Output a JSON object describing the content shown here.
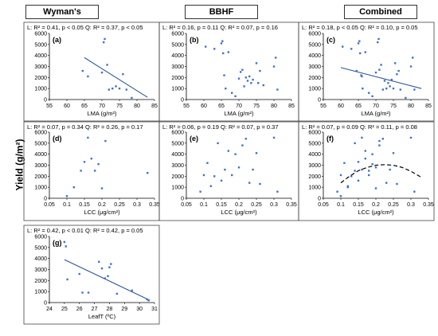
{
  "headers": [
    "Wyman's",
    "BBHF",
    "Combined"
  ],
  "ylabel": "Yield (g/m²)",
  "chart_data": [
    {
      "panel": "(a)",
      "type": "scatter",
      "xlabel": "LMA (g/m²)",
      "stats": "L: R² = 0.41, p < 0.05  Q: R² = 0.37, p < 0.05",
      "xlim": [
        55,
        85
      ],
      "xticks": [
        55,
        60,
        65,
        70,
        75,
        80,
        85
      ],
      "ylim": [
        0,
        6000
      ],
      "yticks": [
        0,
        1000,
        2000,
        3000,
        4000,
        5000,
        6000
      ],
      "x": [
        64.5,
        66,
        70,
        70.5,
        70.8,
        71.5,
        72,
        73,
        74,
        75,
        76,
        77,
        78.5
      ],
      "y": [
        2600,
        2100,
        2450,
        5200,
        5500,
        3150,
        900,
        1000,
        1200,
        1000,
        2300,
        900,
        150
      ],
      "trend": {
        "kind": "linear",
        "x": [
          65,
          83
        ],
        "y": [
          3800,
          200
        ]
      }
    },
    {
      "panel": "(b)",
      "type": "scatter",
      "xlabel": "LMA (g/m²)",
      "stats": "L: R² = 0.16, p = 0.11  Q: R² = 0.07, p = 0.16",
      "xlim": [
        55,
        85
      ],
      "xticks": [
        55,
        60,
        65,
        70,
        75,
        80,
        85
      ],
      "ylim": [
        0,
        6000
      ],
      "yticks": [
        0,
        1000,
        2000,
        3000,
        4000,
        5000,
        6000
      ],
      "x": [
        60.5,
        63,
        65,
        65.3,
        65.5,
        65.8,
        66.2,
        67,
        68,
        69,
        70,
        70.5,
        71,
        71.5,
        72,
        72.5,
        73,
        73.5,
        74,
        75,
        75.5,
        76,
        77,
        80,
        80.5,
        81
      ],
      "y": [
        4800,
        4600,
        5100,
        5300,
        4200,
        2200,
        1000,
        4300,
        600,
        300,
        1900,
        2500,
        2700,
        1200,
        2000,
        1700,
        2100,
        1500,
        1800,
        3300,
        1500,
        2600,
        1300,
        3000,
        3800,
        900
      ],
      "trend": null
    },
    {
      "panel": "(c)",
      "type": "scatter",
      "xlabel": "LMA (g/m²)",
      "stats": "L: R² = 0.18, p < 0.05  Q: R² = 0.10, p = 0.05",
      "xlim": [
        55,
        85
      ],
      "xticks": [
        55,
        60,
        65,
        70,
        75,
        80,
        85
      ],
      "ylim": [
        0,
        6000
      ],
      "yticks": [
        0,
        1000,
        2000,
        3000,
        4000,
        5000,
        6000
      ],
      "x": [
        60.5,
        63,
        64.5,
        65,
        65.3,
        65.5,
        65.8,
        66,
        66.2,
        67,
        68,
        69,
        70,
        70.5,
        70.8,
        71,
        71.5,
        72,
        72.5,
        73,
        73.5,
        74,
        74.5,
        75,
        75.5,
        76,
        76.5,
        77,
        78.5,
        80,
        80.5,
        81
      ],
      "y": [
        4800,
        4600,
        2600,
        5100,
        5300,
        4200,
        2200,
        2100,
        1000,
        4300,
        600,
        300,
        2450,
        5200,
        5500,
        2700,
        3150,
        900,
        1700,
        1000,
        1500,
        1200,
        1800,
        1000,
        3300,
        2300,
        2600,
        900,
        150,
        3000,
        3800,
        900
      ],
      "trend": {
        "kind": "linear",
        "x": [
          60,
          83
        ],
        "y": [
          2900,
          1000
        ]
      }
    },
    {
      "panel": "(d)",
      "type": "scatter",
      "xlabel": "LCC (μg/cm²)",
      "stats": "L: R² = 0.07, p = 0.34  Q: R² = 0.26, p = 0.17",
      "xlim": [
        0.05,
        0.35
      ],
      "xticks": [
        0.05,
        0.1,
        0.15,
        0.2,
        0.25,
        0.3,
        0.35
      ],
      "ylim": [
        0,
        6000
      ],
      "yticks": [
        0,
        1000,
        2000,
        3000,
        4000,
        5000,
        6000
      ],
      "x": [
        0.1,
        0.12,
        0.14,
        0.15,
        0.16,
        0.17,
        0.18,
        0.19,
        0.2,
        0.21,
        0.33
      ],
      "y": [
        200,
        1000,
        2500,
        3300,
        5500,
        3600,
        2500,
        3100,
        900,
        5200,
        2300
      ],
      "trend": null
    },
    {
      "panel": "(e)",
      "type": "scatter",
      "xlabel": "LCC (μg/cm²)",
      "stats": "L: R² = 0.06, p = 0.19  Q: R² = 0.07, p = 0.37",
      "xlim": [
        0.05,
        0.35
      ],
      "xticks": [
        0.05,
        0.1,
        0.15,
        0.2,
        0.25,
        0.3,
        0.35
      ],
      "ylim": [
        0,
        6000
      ],
      "yticks": [
        0,
        1000,
        2000,
        3000,
        4000,
        5000,
        6000
      ],
      "x": [
        0.09,
        0.1,
        0.11,
        0.12,
        0.13,
        0.14,
        0.15,
        0.16,
        0.17,
        0.18,
        0.19,
        0.2,
        0.21,
        0.22,
        0.23,
        0.24,
        0.25,
        0.26,
        0.3,
        0.31
      ],
      "y": [
        600,
        2100,
        3200,
        1100,
        2000,
        5000,
        1600,
        2600,
        4300,
        2100,
        4000,
        2800,
        4800,
        5400,
        1400,
        2600,
        4100,
        1300,
        5500,
        600
      ],
      "trend": null
    },
    {
      "panel": "(f)",
      "type": "scatter",
      "xlabel": "LCC (μg/cm²)",
      "stats": "L: R² = 0.07, p = 0.09  Q: R² = 0.11, p = 0.08",
      "xlim": [
        0.05,
        0.35
      ],
      "xticks": [
        0.05,
        0.1,
        0.15,
        0.2,
        0.25,
        0.3,
        0.35
      ],
      "ylim": [
        0,
        6000
      ],
      "yticks": [
        0,
        1000,
        2000,
        3000,
        4000,
        5000,
        6000
      ],
      "x": [
        0.09,
        0.1,
        0.11,
        0.12,
        0.13,
        0.14,
        0.15,
        0.16,
        0.17,
        0.18,
        0.19,
        0.2,
        0.21,
        0.22,
        0.23,
        0.24,
        0.25,
        0.26,
        0.3,
        0.31,
        0.1,
        0.12,
        0.14,
        0.15,
        0.16,
        0.17,
        0.18,
        0.19,
        0.2,
        0.21
      ],
      "y": [
        600,
        2100,
        3200,
        1100,
        2000,
        5000,
        1600,
        2600,
        4300,
        2100,
        4000,
        2800,
        4800,
        5400,
        1400,
        2600,
        4100,
        1300,
        5500,
        600,
        200,
        1000,
        2500,
        3300,
        5500,
        3600,
        2500,
        3100,
        900,
        5200
      ],
      "trend": {
        "kind": "quadratic",
        "x": [
          0.1,
          0.125,
          0.15,
          0.175,
          0.2,
          0.225,
          0.25,
          0.275,
          0.3,
          0.33
        ],
        "y": [
          1400,
          2000,
          2500,
          2800,
          3000,
          3050,
          3000,
          2800,
          2450,
          1900
        ]
      }
    },
    {
      "panel": "(g)",
      "type": "scatter",
      "xlabel": "LeafT (ºC)",
      "stats": "L: R² = 0.42, p < 0.01  Q: R² = 0.42, p = 0.05",
      "xlim": [
        24,
        31
      ],
      "xticks": [
        24,
        25,
        26,
        27,
        28,
        29,
        30,
        31
      ],
      "ylim": [
        0,
        6000
      ],
      "yticks": [
        0,
        1000,
        2000,
        3000,
        4000,
        5000,
        6000
      ],
      "x": [
        25,
        25.1,
        25.2,
        26,
        26.2,
        26.6,
        27.3,
        27.5,
        27.7,
        27.9,
        28,
        28.1,
        28.5,
        29.5,
        30.5,
        30.6
      ],
      "y": [
        5500,
        5100,
        2100,
        2600,
        900,
        900,
        3700,
        3100,
        2200,
        2400,
        3200,
        3500,
        800,
        1100,
        300,
        200
      ],
      "trend": {
        "kind": "linear",
        "x": [
          25,
          30.7
        ],
        "y": [
          3900,
          200
        ]
      }
    }
  ]
}
